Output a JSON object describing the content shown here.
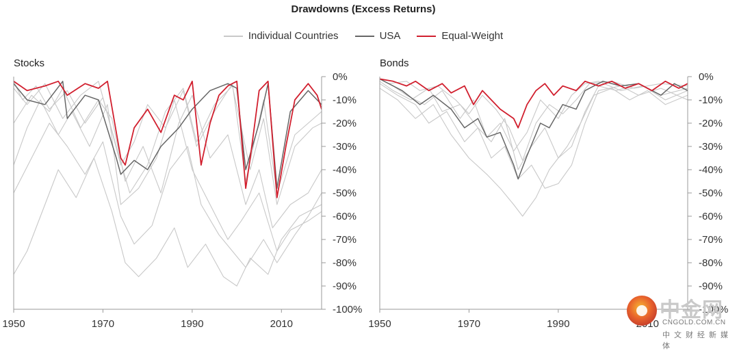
{
  "title": "Drawdowns (Excess Returns)",
  "legend": [
    {
      "label": "Individual Countries",
      "color": "#c8c8c8"
    },
    {
      "label": "USA",
      "color": "#666666"
    },
    {
      "label": "Equal-Weight",
      "color": "#d11f2e"
    }
  ],
  "watermark": {
    "cn_text": "中金网",
    "site": "CNGOLD.COM.CN",
    "subtitle": "中文财经新媒体"
  },
  "chart_data": [
    {
      "type": "line",
      "panel": "Stocks",
      "xlim": [
        1950,
        2019
      ],
      "ylim": [
        -100,
        0
      ],
      "x_ticks": [
        "1950",
        "1970",
        "1990",
        "2010"
      ],
      "y_ticks": [
        "0%",
        "-10%",
        "-20%",
        "-30%",
        "-40%",
        "-50%",
        "-60%",
        "-70%",
        "-80%",
        "-90%",
        "-100%"
      ],
      "grid": false,
      "series": [
        {
          "name": "Individual Countries",
          "role": "individual",
          "x": [
            1950,
            1953,
            1957,
            1960,
            1964,
            1968,
            1972,
            1975,
            1978,
            1982,
            1986,
            1989,
            1993,
            1997,
            2000,
            2003,
            2007,
            2010,
            2014,
            2019
          ],
          "y": [
            -85,
            -75,
            -55,
            -40,
            -52,
            -35,
            -58,
            -80,
            -86,
            -78,
            -65,
            -82,
            -72,
            -86,
            -90,
            -78,
            -85,
            -70,
            -60,
            -55
          ]
        },
        {
          "name": "Individual Countries",
          "role": "individual",
          "x": [
            1950,
            1954,
            1958,
            1962,
            1966,
            1970,
            1974,
            1977,
            1981,
            1985,
            1989,
            1992,
            1996,
            1999,
            2002,
            2006,
            2009,
            2013,
            2016,
            2019
          ],
          "y": [
            -50,
            -35,
            -20,
            -30,
            -42,
            -28,
            -60,
            -72,
            -64,
            -40,
            -30,
            -55,
            -68,
            -75,
            -82,
            -70,
            -80,
            -68,
            -60,
            -50
          ]
        },
        {
          "name": "Individual Countries",
          "role": "individual",
          "x": [
            1950,
            1953,
            1956,
            1960,
            1963,
            1967,
            1971,
            1974,
            1978,
            1982,
            1986,
            1990,
            1994,
            1998,
            2001,
            2005,
            2009,
            2012,
            2016,
            2019
          ],
          "y": [
            -38,
            -22,
            -10,
            -25,
            -15,
            -30,
            -12,
            -55,
            -48,
            -35,
            -10,
            -40,
            -55,
            -70,
            -62,
            -50,
            -75,
            -66,
            -62,
            -58
          ]
        },
        {
          "name": "Individual Countries",
          "role": "individual",
          "x": [
            1950,
            1954,
            1958,
            1961,
            1965,
            1969,
            1972,
            1975,
            1979,
            1983,
            1987,
            1990,
            1994,
            1998,
            2002,
            2005,
            2008,
            2012,
            2016,
            2019
          ],
          "y": [
            -20,
            -8,
            -15,
            -5,
            -22,
            -10,
            -18,
            -45,
            -30,
            -50,
            -20,
            -8,
            -35,
            -25,
            -55,
            -40,
            -65,
            -55,
            -50,
            -40
          ]
        },
        {
          "name": "Individual Countries",
          "role": "individual",
          "x": [
            1950,
            1953,
            1957,
            1961,
            1965,
            1969,
            1973,
            1976,
            1980,
            1984,
            1988,
            1991,
            1995,
            1999,
            2003,
            2006,
            2009,
            2013,
            2017,
            2019
          ],
          "y": [
            -5,
            -12,
            -3,
            -18,
            -8,
            -2,
            -30,
            -50,
            -38,
            -15,
            -5,
            -28,
            -12,
            -4,
            -40,
            -18,
            -55,
            -30,
            -22,
            -20
          ]
        },
        {
          "name": "Individual Countries",
          "role": "individual",
          "x": [
            1950,
            1952,
            1955,
            1958,
            1962,
            1966,
            1970,
            1974,
            1977,
            1980,
            1984,
            1988,
            1991,
            1995,
            1999,
            2002,
            2006,
            2009,
            2013,
            2019
          ],
          "y": [
            -2,
            -10,
            -4,
            -14,
            -6,
            -20,
            -9,
            -38,
            -28,
            -12,
            -22,
            -6,
            -30,
            -15,
            -3,
            -45,
            -10,
            -50,
            -25,
            -15
          ]
        },
        {
          "name": "USA",
          "role": "usa",
          "x": [
            1950,
            1953,
            1957,
            1961,
            1962,
            1966,
            1969,
            1973,
            1974,
            1977,
            1980,
            1983,
            1987,
            1990,
            1994,
            1998,
            2000,
            2002,
            2005,
            2007,
            2009,
            2012,
            2016,
            2019
          ],
          "y": [
            -3,
            -10,
            -12,
            -2,
            -18,
            -8,
            -10,
            -35,
            -42,
            -36,
            -40,
            -30,
            -22,
            -14,
            -6,
            -3,
            -5,
            -40,
            -20,
            -3,
            -48,
            -15,
            -6,
            -12
          ]
        },
        {
          "name": "Equal-Weight",
          "role": "equal",
          "x": [
            1950,
            1953,
            1957,
            1960,
            1962,
            1966,
            1969,
            1971,
            1974,
            1975,
            1977,
            1980,
            1983,
            1986,
            1988,
            1990,
            1992,
            1994,
            1996,
            1998,
            2000,
            2002,
            2003,
            2005,
            2007,
            2009,
            2011,
            2013,
            2016,
            2018,
            2019
          ],
          "y": [
            -2,
            -6,
            -4,
            -2,
            -8,
            -3,
            -5,
            -2,
            -35,
            -38,
            -22,
            -14,
            -24,
            -8,
            -10,
            -2,
            -38,
            -20,
            -8,
            -4,
            -2,
            -48,
            -35,
            -6,
            -2,
            -52,
            -30,
            -10,
            -3,
            -8,
            -14
          ]
        }
      ]
    },
    {
      "type": "line",
      "panel": "Bonds",
      "xlim": [
        1950,
        2019
      ],
      "ylim": [
        -100,
        0
      ],
      "x_ticks": [
        "1950",
        "1970",
        "1990",
        "2010"
      ],
      "y_ticks": [
        "0%",
        "-10%",
        "-20%",
        "-30%",
        "-40%",
        "-50%",
        "-60%",
        "-70%",
        "-80%",
        "-90%",
        "-100%"
      ],
      "grid": false,
      "series": [
        {
          "name": "Individual Countries",
          "role": "individual",
          "x": [
            1950,
            1954,
            1958,
            1962,
            1966,
            1970,
            1974,
            1977,
            1980,
            1982,
            1985,
            1988,
            1992,
            1995,
            1998,
            2002,
            2006,
            2010,
            2014,
            2019
          ],
          "y": [
            -5,
            -10,
            -18,
            -12,
            -25,
            -35,
            -42,
            -48,
            -55,
            -60,
            -52,
            -40,
            -30,
            -20,
            -8,
            -5,
            -10,
            -6,
            -12,
            -8
          ]
        },
        {
          "name": "Individual Countries",
          "role": "individual",
          "x": [
            1950,
            1954,
            1958,
            1961,
            1965,
            1969,
            1972,
            1975,
            1978,
            1981,
            1984,
            1987,
            1990,
            1993,
            1996,
            1999,
            2004,
            2008,
            2013,
            2019
          ],
          "y": [
            -3,
            -8,
            -12,
            -20,
            -15,
            -28,
            -22,
            -35,
            -30,
            -44,
            -38,
            -48,
            -46,
            -38,
            -20,
            -6,
            -4,
            -8,
            -5,
            -10
          ]
        },
        {
          "name": "Individual Countries",
          "role": "individual",
          "x": [
            1950,
            1953,
            1957,
            1961,
            1964,
            1968,
            1972,
            1975,
            1978,
            1981,
            1984,
            1987,
            1990,
            1993,
            1996,
            1999,
            2003,
            2008,
            2013,
            2019
          ],
          "y": [
            -2,
            -6,
            -10,
            -5,
            -15,
            -12,
            -22,
            -28,
            -18,
            -40,
            -30,
            -22,
            -35,
            -30,
            -15,
            -4,
            -6,
            -3,
            -8,
            -5
          ]
        },
        {
          "name": "Individual Countries",
          "role": "individual",
          "x": [
            1950,
            1953,
            1956,
            1960,
            1964,
            1968,
            1971,
            1974,
            1977,
            1980,
            1983,
            1986,
            1990,
            1993,
            1996,
            1999,
            2004,
            2009,
            2014,
            2019
          ],
          "y": [
            -1,
            -4,
            -8,
            -12,
            -6,
            -18,
            -10,
            -26,
            -20,
            -32,
            -24,
            -10,
            -18,
            -8,
            -3,
            -2,
            -6,
            -4,
            -10,
            -6
          ]
        },
        {
          "name": "Individual Countries",
          "role": "individual",
          "x": [
            1950,
            1952,
            1956,
            1959,
            1963,
            1967,
            1970,
            1973,
            1976,
            1979,
            1982,
            1985,
            1988,
            1991,
            1994,
            1997,
            2002,
            2007,
            2013,
            2019
          ],
          "y": [
            -1,
            -3,
            -2,
            -6,
            -4,
            -10,
            -16,
            -8,
            -14,
            -22,
            -36,
            -20,
            -12,
            -16,
            -10,
            -3,
            -2,
            -5,
            -3,
            -4
          ]
        },
        {
          "name": "USA",
          "role": "usa",
          "x": [
            1950,
            1955,
            1959,
            1962,
            1966,
            1969,
            1972,
            1974,
            1977,
            1980,
            1981,
            1983,
            1986,
            1988,
            1991,
            1994,
            1996,
            2000,
            2004,
            2008,
            2013,
            2016,
            2019
          ],
          "y": [
            -1,
            -6,
            -12,
            -8,
            -14,
            -22,
            -18,
            -26,
            -24,
            -38,
            -44,
            -34,
            -20,
            -22,
            -12,
            -14,
            -6,
            -2,
            -4,
            -3,
            -8,
            -3,
            -6
          ]
        },
        {
          "name": "Equal-Weight",
          "role": "equal",
          "x": [
            1950,
            1953,
            1956,
            1958,
            1961,
            1964,
            1966,
            1969,
            1971,
            1973,
            1975,
            1977,
            1980,
            1981,
            1983,
            1985,
            1987,
            1989,
            1991,
            1994,
            1996,
            1999,
            2002,
            2005,
            2008,
            2011,
            2014,
            2017,
            2019
          ],
          "y": [
            -1,
            -2,
            -4,
            -2,
            -6,
            -3,
            -7,
            -4,
            -12,
            -6,
            -10,
            -14,
            -18,
            -22,
            -12,
            -6,
            -3,
            -8,
            -4,
            -6,
            -2,
            -4,
            -2,
            -5,
            -3,
            -6,
            -2,
            -5,
            -3
          ]
        }
      ]
    }
  ]
}
